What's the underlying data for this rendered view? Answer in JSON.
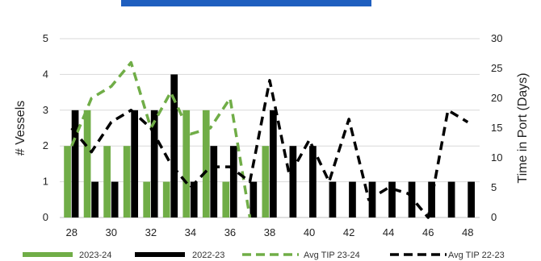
{
  "chart_data": {
    "type": "bar",
    "title": "",
    "xlabel": "",
    "ylabel": "# Vessels",
    "y2label": "Time in Port (Days)",
    "x": [
      28,
      29,
      30,
      31,
      32,
      33,
      34,
      35,
      36,
      37,
      38,
      39,
      40,
      41,
      42,
      43,
      44,
      45,
      46,
      47,
      48
    ],
    "x_ticks": [
      "28",
      "30",
      "32",
      "34",
      "36",
      "38",
      "40",
      "42",
      "44",
      "46",
      "48"
    ],
    "xlim": [
      27.4,
      48.6
    ],
    "ylim": [
      0,
      5
    ],
    "y_ticks": [
      "0",
      "1",
      "2",
      "3",
      "4",
      "5"
    ],
    "y2lim": [
      0,
      30
    ],
    "y2_ticks": [
      "0",
      "5",
      "10",
      "15",
      "20",
      "25",
      "30"
    ],
    "grid": "horizontal",
    "legend_position": "bottom",
    "bars": [
      {
        "name": "2023-24",
        "color": "#70ad47",
        "axis": "left",
        "values": [
          2,
          3,
          2,
          2,
          1,
          1,
          3,
          3,
          1,
          null,
          2,
          null,
          null,
          null,
          null,
          null,
          null,
          null,
          null,
          null,
          null
        ]
      },
      {
        "name": "2022-23",
        "color": "#000000",
        "axis": "left",
        "values": [
          3,
          1,
          1,
          3,
          3,
          4,
          1,
          2,
          2,
          1,
          3,
          2,
          2,
          1,
          1,
          1,
          1,
          1,
          1,
          1,
          1
        ]
      }
    ],
    "lines": [
      {
        "name": "Avg TIP 23-24",
        "color": "#70ad47",
        "axis": "right",
        "values": [
          12,
          20,
          22,
          26,
          15,
          21,
          14,
          15,
          20,
          0,
          null,
          null,
          null,
          null,
          null,
          null,
          null,
          null,
          null,
          null,
          null
        ]
      },
      {
        "name": "Avg TIP 22-23",
        "color": "#000000",
        "axis": "right",
        "values": [
          15,
          11,
          16,
          18,
          15,
          9,
          5,
          8.5,
          8.5,
          6,
          23,
          7,
          13,
          6,
          16.5,
          3,
          5,
          4,
          0,
          18,
          16
        ]
      }
    ]
  }
}
